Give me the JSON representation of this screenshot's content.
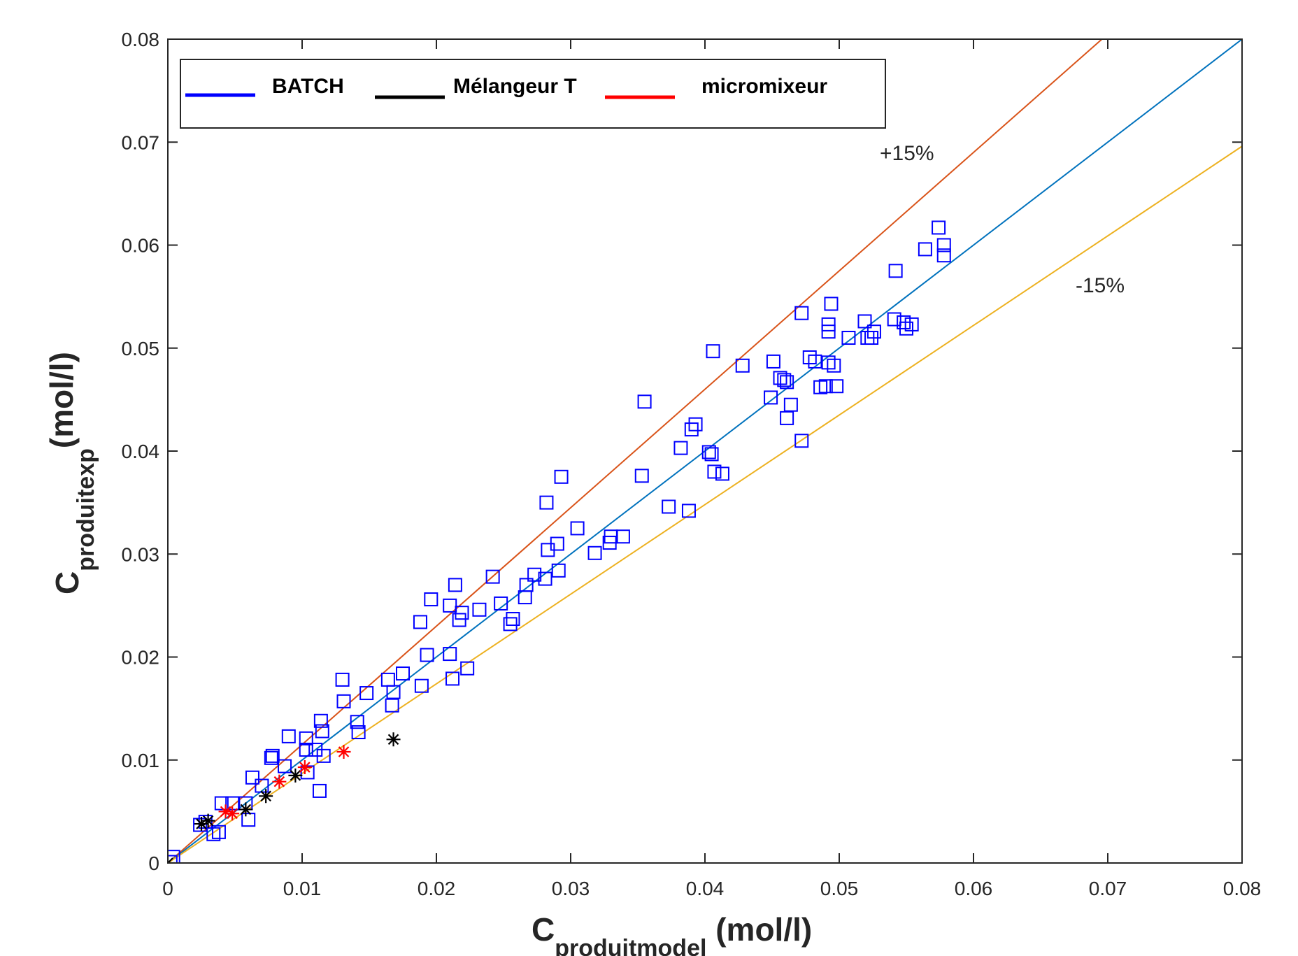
{
  "chart_data": {
    "type": "scatter",
    "xlabel": {
      "main": "C",
      "sub": "produitmodel",
      "unit": " (mol/l)"
    },
    "ylabel": {
      "main": "C",
      "sub": "produitexp",
      "unit": "(mol/l)"
    },
    "xlim": [
      0,
      0.08
    ],
    "ylim": [
      0,
      0.08
    ],
    "x_ticks": [
      0,
      0.01,
      0.02,
      0.03,
      0.04,
      0.05,
      0.06,
      0.07,
      0.08
    ],
    "y_ticks": [
      0,
      0.01,
      0.02,
      0.03,
      0.04,
      0.05,
      0.06,
      0.07,
      0.08
    ],
    "x_tick_labels": [
      "0",
      "0.01",
      "0.02",
      "0.03",
      "0.04",
      "0.05",
      "0.06",
      "0.07",
      "0.08"
    ],
    "y_tick_labels": [
      "0",
      "0.01",
      "0.02",
      "0.03",
      "0.04",
      "0.05",
      "0.06",
      "0.07",
      "0.08"
    ],
    "grid": false,
    "legend_position": "top-left",
    "legend": [
      {
        "label": "BATCH",
        "color": "#0000ff"
      },
      {
        "label": "Mélangeur T",
        "color": "#000000"
      },
      {
        "label": "micromixeur",
        "color": "#ff0000"
      }
    ],
    "reference_lines": [
      {
        "label": "+15%",
        "slope": 1.15,
        "color": "#d95319"
      },
      {
        "label": "",
        "slope": 1.0,
        "color": "#0072bd"
      },
      {
        "label": "-15%",
        "slope": 0.87,
        "color": "#edb120"
      }
    ],
    "annotations": [
      {
        "text": "+15%",
        "x": 0.0555,
        "y": 0.0685
      },
      {
        "text": "-15%",
        "x": 0.0715,
        "y": 0.0555
      }
    ],
    "series": [
      {
        "name": "BATCH",
        "marker": "square",
        "color": "#0000ff",
        "points": [
          [
            0.0002,
            0.0001
          ],
          [
            0.0004,
            0.0006
          ],
          [
            0.0024,
            0.0037
          ],
          [
            0.0028,
            0.004
          ],
          [
            0.0034,
            0.0028
          ],
          [
            0.0038,
            0.003
          ],
          [
            0.004,
            0.0058
          ],
          [
            0.0048,
            0.0058
          ],
          [
            0.0058,
            0.0058
          ],
          [
            0.006,
            0.0042
          ],
          [
            0.0063,
            0.0083
          ],
          [
            0.007,
            0.0075
          ],
          [
            0.0078,
            0.0104
          ],
          [
            0.0077,
            0.0102
          ],
          [
            0.0087,
            0.0094
          ],
          [
            0.009,
            0.0123
          ],
          [
            0.0103,
            0.0121
          ],
          [
            0.0103,
            0.011
          ],
          [
            0.0104,
            0.0088
          ],
          [
            0.011,
            0.011
          ],
          [
            0.0114,
            0.0138
          ],
          [
            0.0115,
            0.0128
          ],
          [
            0.0116,
            0.0104
          ],
          [
            0.0113,
            0.007
          ],
          [
            0.013,
            0.0178
          ],
          [
            0.0131,
            0.0157
          ],
          [
            0.0141,
            0.0137
          ],
          [
            0.0142,
            0.0127
          ],
          [
            0.0148,
            0.0165
          ],
          [
            0.0164,
            0.0178
          ],
          [
            0.0168,
            0.0166
          ],
          [
            0.0167,
            0.0153
          ],
          [
            0.0175,
            0.0184
          ],
          [
            0.0188,
            0.0234
          ],
          [
            0.0189,
            0.0172
          ],
          [
            0.0193,
            0.0202
          ],
          [
            0.0196,
            0.0256
          ],
          [
            0.021,
            0.025
          ],
          [
            0.021,
            0.0203
          ],
          [
            0.0212,
            0.0179
          ],
          [
            0.0214,
            0.027
          ],
          [
            0.0217,
            0.0236
          ],
          [
            0.0219,
            0.0243
          ],
          [
            0.0223,
            0.0189
          ],
          [
            0.0232,
            0.0246
          ],
          [
            0.0242,
            0.0278
          ],
          [
            0.0248,
            0.0252
          ],
          [
            0.0255,
            0.0232
          ],
          [
            0.0257,
            0.0237
          ],
          [
            0.0266,
            0.0258
          ],
          [
            0.0267,
            0.027
          ],
          [
            0.0273,
            0.028
          ],
          [
            0.0281,
            0.0276
          ],
          [
            0.0282,
            0.035
          ],
          [
            0.0283,
            0.0304
          ],
          [
            0.029,
            0.031
          ],
          [
            0.0291,
            0.0284
          ],
          [
            0.0293,
            0.0375
          ],
          [
            0.0305,
            0.0325
          ],
          [
            0.0318,
            0.0301
          ],
          [
            0.0329,
            0.0311
          ],
          [
            0.033,
            0.0317
          ],
          [
            0.0339,
            0.0317
          ],
          [
            0.0353,
            0.0376
          ],
          [
            0.0355,
            0.0448
          ],
          [
            0.0373,
            0.0346
          ],
          [
            0.0382,
            0.0403
          ],
          [
            0.0388,
            0.0342
          ],
          [
            0.039,
            0.0421
          ],
          [
            0.0393,
            0.0426
          ],
          [
            0.0403,
            0.0399
          ],
          [
            0.0405,
            0.0397
          ],
          [
            0.0406,
            0.0497
          ],
          [
            0.0407,
            0.038
          ],
          [
            0.0413,
            0.0378
          ],
          [
            0.0428,
            0.0483
          ],
          [
            0.0449,
            0.0452
          ],
          [
            0.0451,
            0.0487
          ],
          [
            0.0456,
            0.0471
          ],
          [
            0.0459,
            0.0469
          ],
          [
            0.0461,
            0.0432
          ],
          [
            0.0461,
            0.0467
          ],
          [
            0.0464,
            0.0445
          ],
          [
            0.0472,
            0.041
          ],
          [
            0.0472,
            0.0534
          ],
          [
            0.0478,
            0.0491
          ],
          [
            0.0482,
            0.0487
          ],
          [
            0.0486,
            0.0462
          ],
          [
            0.049,
            0.0463
          ],
          [
            0.0492,
            0.0486
          ],
          [
            0.0492,
            0.0516
          ],
          [
            0.0492,
            0.0523
          ],
          [
            0.0494,
            0.0543
          ],
          [
            0.0496,
            0.0483
          ],
          [
            0.0498,
            0.0463
          ],
          [
            0.0507,
            0.051
          ],
          [
            0.0519,
            0.0526
          ],
          [
            0.0521,
            0.051
          ],
          [
            0.0524,
            0.051
          ],
          [
            0.0526,
            0.0516
          ],
          [
            0.0541,
            0.0528
          ],
          [
            0.0542,
            0.0575
          ],
          [
            0.0548,
            0.0525
          ],
          [
            0.055,
            0.0519
          ],
          [
            0.0554,
            0.0523
          ],
          [
            0.0564,
            0.0596
          ],
          [
            0.0574,
            0.0617
          ],
          [
            0.0578,
            0.06
          ],
          [
            0.0578,
            0.059
          ]
        ]
      },
      {
        "name": "Mélangeur T",
        "marker": "asterisk",
        "color": "#000000",
        "points": [
          [
            0.0,
            0.0
          ],
          [
            0.0025,
            0.0038
          ],
          [
            0.003,
            0.0041
          ],
          [
            0.0058,
            0.0052
          ],
          [
            0.0073,
            0.0065
          ],
          [
            0.0095,
            0.0085
          ],
          [
            0.0168,
            0.012
          ]
        ]
      },
      {
        "name": "micromixeur",
        "marker": "asterisk",
        "color": "#ff0000",
        "points": [
          [
            0.0043,
            0.005
          ],
          [
            0.0048,
            0.0048
          ],
          [
            0.0083,
            0.0079
          ],
          [
            0.0102,
            0.0093
          ],
          [
            0.0131,
            0.0108
          ]
        ]
      }
    ]
  }
}
